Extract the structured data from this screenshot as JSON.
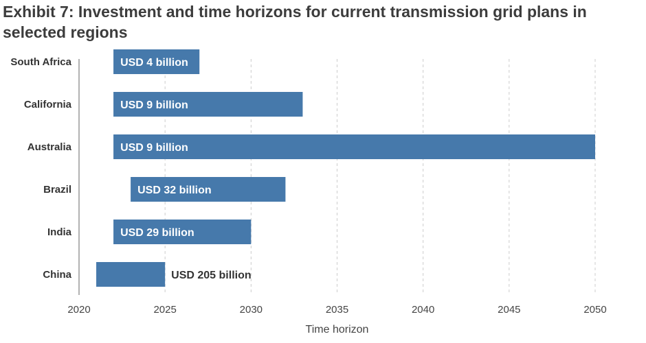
{
  "chart_data": {
    "type": "bar",
    "orientation": "horizontal-range",
    "title": "Exhibit 7: Investment and time horizons for current transmission grid plans in selected regions",
    "xlabel": "Time horizon",
    "ylabel": "",
    "xlim": [
      2020,
      2050
    ],
    "xticks": [
      2020,
      2025,
      2030,
      2035,
      2040,
      2045,
      2050
    ],
    "grid": "vertical-dashed",
    "categories": [
      "South Africa",
      "California",
      "Australia",
      "Brazil",
      "India",
      "China"
    ],
    "series": [
      {
        "start": [
          2022,
          2022,
          2022,
          2023,
          2022,
          2021
        ],
        "end": [
          2027,
          2033,
          2050,
          2032,
          2030,
          2025
        ],
        "labels": [
          "USD 4 billion",
          "USD 9 billion",
          "USD 9 billion",
          "USD 32 billion",
          "USD 29 billion",
          "USD 205 billion"
        ],
        "label_position": [
          "inside",
          "inside",
          "inside",
          "inside",
          "inside",
          "outside"
        ]
      }
    ],
    "colors": {
      "bar": "#4679ab",
      "grid": "#cccccc",
      "axis": "#999999",
      "label_inside": "#ffffff",
      "label_outside": "#333333"
    }
  }
}
